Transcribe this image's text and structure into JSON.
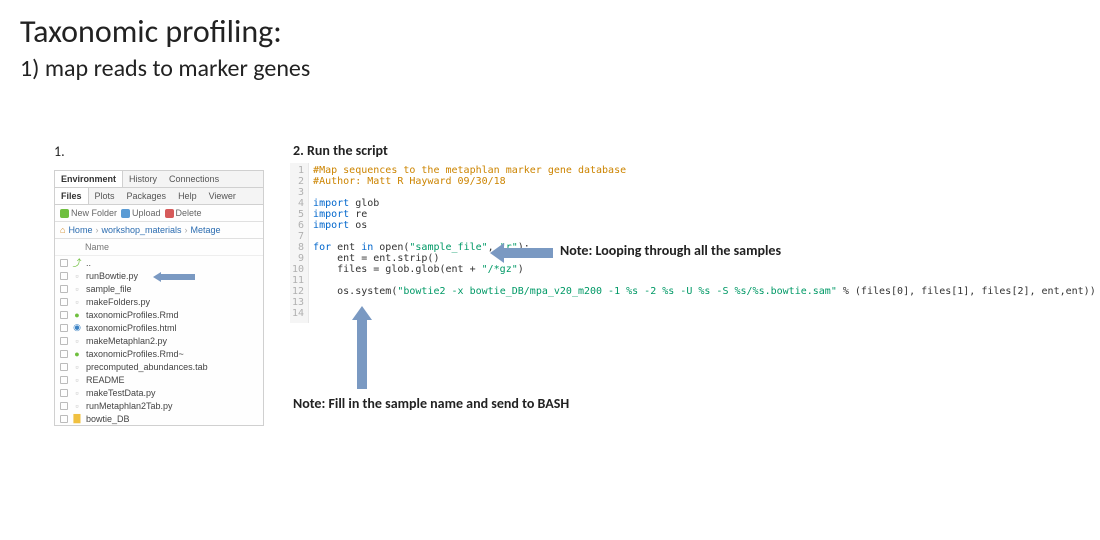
{
  "title": "Taxonomic profiling:",
  "subtitle": "1) map reads to marker genes",
  "label_step1": "1.",
  "label_step2": "2. Run the script",
  "note_loop": "Note: Looping through all the samples",
  "note_bash": "Note: Fill in the sample name and send to BASH",
  "filepanel": {
    "tabs1": [
      "Environment",
      "History",
      "Connections"
    ],
    "tabs2": [
      "Files",
      "Plots",
      "Packages",
      "Help",
      "Viewer"
    ],
    "toolbar": {
      "new": "New Folder",
      "upload": "Upload",
      "delete": "Delete"
    },
    "breadcrumb": [
      "Home",
      "workshop_materials",
      "Metage"
    ],
    "list_header": "Name",
    "files": [
      {
        "icon": "up",
        "name": "..",
        "color": "#888888"
      },
      {
        "icon": "py",
        "name": "runBowtie.py",
        "color": "#666666"
      },
      {
        "icon": "txt",
        "name": "sample_file",
        "color": "#666666"
      },
      {
        "icon": "py",
        "name": "makeFolders.py",
        "color": "#666666"
      },
      {
        "icon": "rmd",
        "name": "taxonomicProfiles.Rmd",
        "color": "#6fbf3f"
      },
      {
        "icon": "html",
        "name": "taxonomicProfiles.html",
        "color": "#3b82c4"
      },
      {
        "icon": "py",
        "name": "makeMetaphlan2.py",
        "color": "#666666"
      },
      {
        "icon": "rmd",
        "name": "taxonomicProfiles.Rmd~",
        "color": "#6fbf3f"
      },
      {
        "icon": "tab",
        "name": "precomputed_abundances.tab",
        "color": "#666666"
      },
      {
        "icon": "txt",
        "name": "README",
        "color": "#666666"
      },
      {
        "icon": "py",
        "name": "makeTestData.py",
        "color": "#666666"
      },
      {
        "icon": "py",
        "name": "runMetaphlan2Tab.py",
        "color": "#666666"
      },
      {
        "icon": "folder",
        "name": "bowtie_DB",
        "color": "#f0c040"
      }
    ],
    "highlight_index": 1
  },
  "code": {
    "gutter_color": "#b0b0b0",
    "gutter_bg": "#f5f5f5",
    "lines": [
      {
        "n": 1,
        "html": "<span class='c-comment'>#Map sequences to the metaphlan marker gene database</span>"
      },
      {
        "n": 2,
        "html": "<span class='c-comment'>#Author: Matt R Hayward 09/30/18</span>"
      },
      {
        "n": 3,
        "html": ""
      },
      {
        "n": 4,
        "html": "<span class='c-kw'>import</span> glob"
      },
      {
        "n": 5,
        "html": "<span class='c-kw'>import</span> re"
      },
      {
        "n": 6,
        "html": "<span class='c-kw'>import</span> os"
      },
      {
        "n": 7,
        "html": ""
      },
      {
        "n": 8,
        "html": "<span class='c-kw'>for</span> ent <span class='c-kw'>in</span> open(<span class='c-str'>\"sample_file\"</span>, <span class='c-str'>\"r\"</span>):"
      },
      {
        "n": 9,
        "html": "    ent = ent.strip()"
      },
      {
        "n": 10,
        "html": "    files = glob.glob(ent + <span class='c-str'>\"/*gz\"</span>)"
      },
      {
        "n": 11,
        "html": ""
      },
      {
        "n": 12,
        "html": "    os.system(<span class='c-str'>\"bowtie2 -x bowtie_DB/mpa_v20_m200 -1 %s -2 %s -U %s -S %s/%s.bowtie.sam\"</span> % (files[0], files[1], files[2], ent,ent))"
      },
      {
        "n": 13,
        "html": ""
      },
      {
        "n": 14,
        "html": ""
      }
    ]
  },
  "colors": {
    "arrow": "#7a99c2",
    "text": "#222222"
  }
}
